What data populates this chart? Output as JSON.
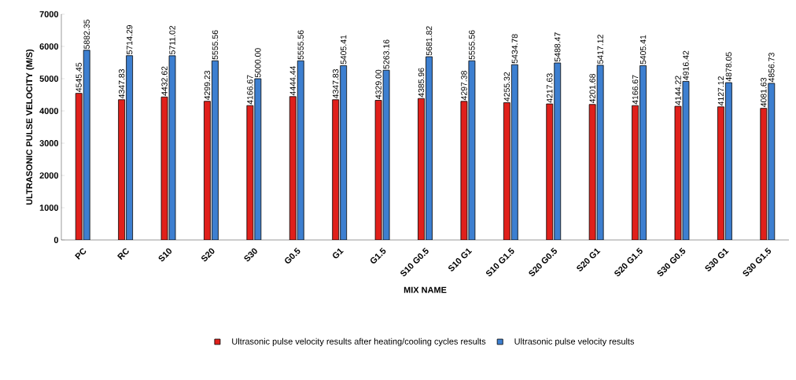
{
  "chart_data": {
    "type": "bar",
    "xlabel": "MIX NAME",
    "ylabel": "ULTRASONIC  PULSE  VELOCITY       (M/S)",
    "categories": [
      "PC",
      "RC",
      "S10",
      "S20",
      "S30",
      "G0.5",
      "G1",
      "G1.5",
      "S10 G0.5",
      "S10 G1",
      "S10 G1.5",
      "S20 G0.5",
      "S20 G1",
      "S20 G1.5",
      "S30 G0.5",
      "S30 G1",
      "S30 G1.5"
    ],
    "series": [
      {
        "name": "Ultrasonic pulse velocity results after heating/cooling cycles results",
        "color": "#e0201b",
        "values": [
          4545.45,
          4347.83,
          4432.62,
          4299.23,
          4166.67,
          4444.44,
          4347.83,
          4329.0,
          4385.96,
          4297.38,
          4255.32,
          4217.63,
          4201.68,
          4166.67,
          4144.22,
          4127.12,
          4081.63
        ],
        "value_labels": [
          "4545.45",
          "4347.83",
          "4432.62",
          "4299.23",
          "4166.67",
          "4444.44",
          "4347.83",
          "4329.00",
          "4385.96",
          "4297.38",
          "4255.32",
          "4217.63",
          "4201.68",
          "4166.67",
          "4144.22",
          "4127.12",
          "4081.63"
        ]
      },
      {
        "name": "Ultrasonic pulse velocity results",
        "color": "#3d7fd0",
        "values": [
          5882.35,
          5714.29,
          5711.02,
          5555.56,
          5000.0,
          5555.56,
          5405.41,
          5263.16,
          5681.82,
          5555.56,
          5434.78,
          5488.47,
          5417.12,
          5405.41,
          4916.42,
          4878.05,
          4856.73
        ],
        "value_labels": [
          "5882.35",
          "5714.29",
          "5711.02",
          "5555.56",
          "5000.00",
          "5555.56",
          "5405.41",
          "5263.16",
          "5681.82",
          "5555.56",
          "5434.78",
          "5488.47",
          "5417.12",
          "5405.41",
          "4916.42",
          "4878.05",
          "4856.73"
        ]
      }
    ],
    "ylim": [
      0,
      7000
    ],
    "yticks": [
      0,
      1000,
      2000,
      3000,
      4000,
      5000,
      6000,
      7000
    ],
    "grid": false,
    "legend": "bottom"
  }
}
